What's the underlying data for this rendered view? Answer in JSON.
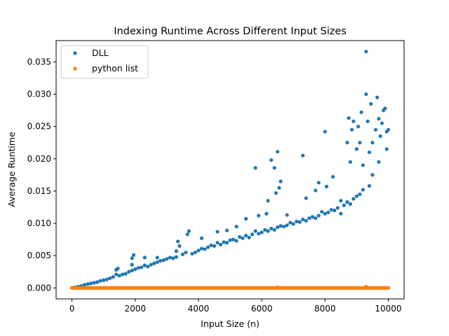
{
  "chart_data": {
    "type": "scatter",
    "title": "Indexing Runtime Across Different Input Sizes",
    "xlabel": "Input Size (n)",
    "ylabel": "Average Runtime",
    "xlim": [
      -500,
      10500
    ],
    "ylim": [
      -0.0017,
      0.0383
    ],
    "xticks": [
      0,
      2000,
      4000,
      6000,
      8000,
      10000
    ],
    "xtick_labels": [
      "0",
      "2000",
      "4000",
      "6000",
      "8000",
      "10000"
    ],
    "yticks": [
      0.0,
      0.005,
      0.01,
      0.015,
      0.02,
      0.025,
      0.03,
      0.035
    ],
    "ytick_labels": [
      "0.000",
      "0.005",
      "0.010",
      "0.015",
      "0.020",
      "0.025",
      "0.030",
      "0.035"
    ],
    "grid": false,
    "legend": {
      "placement": "top-left",
      "entries": [
        "DLL",
        "python list"
      ]
    },
    "series": [
      {
        "name": "DLL",
        "color": "#1f77b4",
        "points": [
          [
            0,
            0.0
          ],
          [
            100,
            0.0001
          ],
          [
            200,
            0.0002
          ],
          [
            300,
            0.0003
          ],
          [
            400,
            0.0005
          ],
          [
            500,
            0.0006
          ],
          [
            600,
            0.0007
          ],
          [
            700,
            0.0008
          ],
          [
            800,
            0.0009
          ],
          [
            900,
            0.0011
          ],
          [
            1000,
            0.0012
          ],
          [
            1100,
            0.0013
          ],
          [
            1200,
            0.0015
          ],
          [
            1300,
            0.0017
          ],
          [
            1400,
            0.0021
          ],
          [
            1400,
            0.0028
          ],
          [
            1450,
            0.003
          ],
          [
            1500,
            0.0019
          ],
          [
            1600,
            0.0021
          ],
          [
            1700,
            0.0022
          ],
          [
            1800,
            0.0025
          ],
          [
            1900,
            0.0027
          ],
          [
            1900,
            0.0036
          ],
          [
            1900,
            0.0046
          ],
          [
            1950,
            0.0051
          ],
          [
            2000,
            0.0029
          ],
          [
            2100,
            0.0031
          ],
          [
            2200,
            0.0032
          ],
          [
            2300,
            0.0035
          ],
          [
            2300,
            0.0047
          ],
          [
            2400,
            0.0033
          ],
          [
            2500,
            0.0036
          ],
          [
            2600,
            0.0038
          ],
          [
            2700,
            0.004
          ],
          [
            2700,
            0.0047
          ],
          [
            2800,
            0.0042
          ],
          [
            2900,
            0.0043
          ],
          [
            3000,
            0.0045
          ],
          [
            3100,
            0.0047
          ],
          [
            3200,
            0.0046
          ],
          [
            3300,
            0.0048
          ],
          [
            3300,
            0.0057
          ],
          [
            3350,
            0.0072
          ],
          [
            3400,
            0.0065
          ],
          [
            3500,
            0.0052
          ],
          [
            3600,
            0.0055
          ],
          [
            3650,
            0.0083
          ],
          [
            3700,
            0.0088
          ],
          [
            3800,
            0.0053
          ],
          [
            3900,
            0.0055
          ],
          [
            4000,
            0.0058
          ],
          [
            4100,
            0.0061
          ],
          [
            4100,
            0.0077
          ],
          [
            4200,
            0.006
          ],
          [
            4300,
            0.0063
          ],
          [
            4400,
            0.0066
          ],
          [
            4500,
            0.0065
          ],
          [
            4600,
            0.007
          ],
          [
            4600,
            0.0087
          ],
          [
            4700,
            0.0067
          ],
          [
            4800,
            0.0071
          ],
          [
            4900,
            0.007
          ],
          [
            4900,
            0.0089
          ],
          [
            5000,
            0.0074
          ],
          [
            5100,
            0.0075
          ],
          [
            5200,
            0.0073
          ],
          [
            5200,
            0.0095
          ],
          [
            5300,
            0.0079
          ],
          [
            5400,
            0.0077
          ],
          [
            5500,
            0.0081
          ],
          [
            5500,
            0.0107
          ],
          [
            5600,
            0.0078
          ],
          [
            5700,
            0.0083
          ],
          [
            5800,
            0.0088
          ],
          [
            5800,
            0.0186
          ],
          [
            5900,
            0.0084
          ],
          [
            5900,
            0.0112
          ],
          [
            6000,
            0.0086
          ],
          [
            6100,
            0.009
          ],
          [
            6150,
            0.0115
          ],
          [
            6200,
            0.0088
          ],
          [
            6200,
            0.0135
          ],
          [
            6300,
            0.0092
          ],
          [
            6300,
            0.0198
          ],
          [
            6400,
            0.009
          ],
          [
            6400,
            0.0186
          ],
          [
            6450,
            0.0147
          ],
          [
            6500,
            0.0094
          ],
          [
            6500,
            0.0211
          ],
          [
            6550,
            0.0155
          ],
          [
            6600,
            0.0096
          ],
          [
            6600,
            0.0165
          ],
          [
            6700,
            0.0095
          ],
          [
            6800,
            0.0097
          ],
          [
            6800,
            0.0113
          ],
          [
            6900,
            0.0101
          ],
          [
            7000,
            0.0099
          ],
          [
            7100,
            0.0103
          ],
          [
            7200,
            0.0102
          ],
          [
            7300,
            0.0106
          ],
          [
            7300,
            0.0205
          ],
          [
            7400,
            0.0104
          ],
          [
            7400,
            0.0139
          ],
          [
            7500,
            0.0108
          ],
          [
            7600,
            0.011
          ],
          [
            7700,
            0.0108
          ],
          [
            7700,
            0.0151
          ],
          [
            7800,
            0.0112
          ],
          [
            7800,
            0.0163
          ],
          [
            7900,
            0.0118
          ],
          [
            8000,
            0.0115
          ],
          [
            8000,
            0.0242
          ],
          [
            8050,
            0.0157
          ],
          [
            8100,
            0.0117
          ],
          [
            8200,
            0.0121
          ],
          [
            8250,
            0.0172
          ],
          [
            8300,
            0.012
          ],
          [
            8400,
            0.0124
          ],
          [
            8500,
            0.0115
          ],
          [
            8500,
            0.0135
          ],
          [
            8600,
            0.0128
          ],
          [
            8700,
            0.0133
          ],
          [
            8700,
            0.0225
          ],
          [
            8750,
            0.0263
          ],
          [
            8800,
            0.013
          ],
          [
            8800,
            0.0195
          ],
          [
            8850,
            0.0245
          ],
          [
            8900,
            0.0138
          ],
          [
            8900,
            0.0258
          ],
          [
            9000,
            0.0142
          ],
          [
            9000,
            0.0215
          ],
          [
            9050,
            0.025
          ],
          [
            9100,
            0.0145
          ],
          [
            9100,
            0.0225
          ],
          [
            9150,
            0.0272
          ],
          [
            9200,
            0.0152
          ],
          [
            9200,
            0.019
          ],
          [
            9300,
            0.0366
          ],
          [
            9300,
            0.03
          ],
          [
            9350,
            0.0258
          ],
          [
            9400,
            0.021
          ],
          [
            9400,
            0.0158
          ],
          [
            9450,
            0.0285
          ],
          [
            9500,
            0.0225
          ],
          [
            9500,
            0.0175
          ],
          [
            9600,
            0.0245
          ],
          [
            9650,
            0.0295
          ],
          [
            9700,
            0.0262
          ],
          [
            9700,
            0.0195
          ],
          [
            9750,
            0.0235
          ],
          [
            9800,
            0.0255
          ],
          [
            9850,
            0.0275
          ],
          [
            9900,
            0.0278
          ],
          [
            9950,
            0.0242
          ],
          [
            9950,
            0.0215
          ],
          [
            10000,
            0.0245
          ]
        ]
      },
      {
        "name": "python list",
        "color": "#ff7f0e",
        "points": [
          [
            0,
            0.0
          ],
          [
            1000,
            0.0
          ],
          [
            2000,
            0.0
          ],
          [
            3000,
            0.0
          ],
          [
            4000,
            0.0
          ],
          [
            5000,
            0.0
          ],
          [
            6000,
            0.0
          ],
          [
            7000,
            0.0
          ],
          [
            8000,
            0.0
          ],
          [
            9000,
            0.0
          ],
          [
            10000,
            0.0
          ],
          [
            6500,
            0.0001
          ],
          [
            9300,
            0.0002
          ]
        ]
      }
    ]
  }
}
